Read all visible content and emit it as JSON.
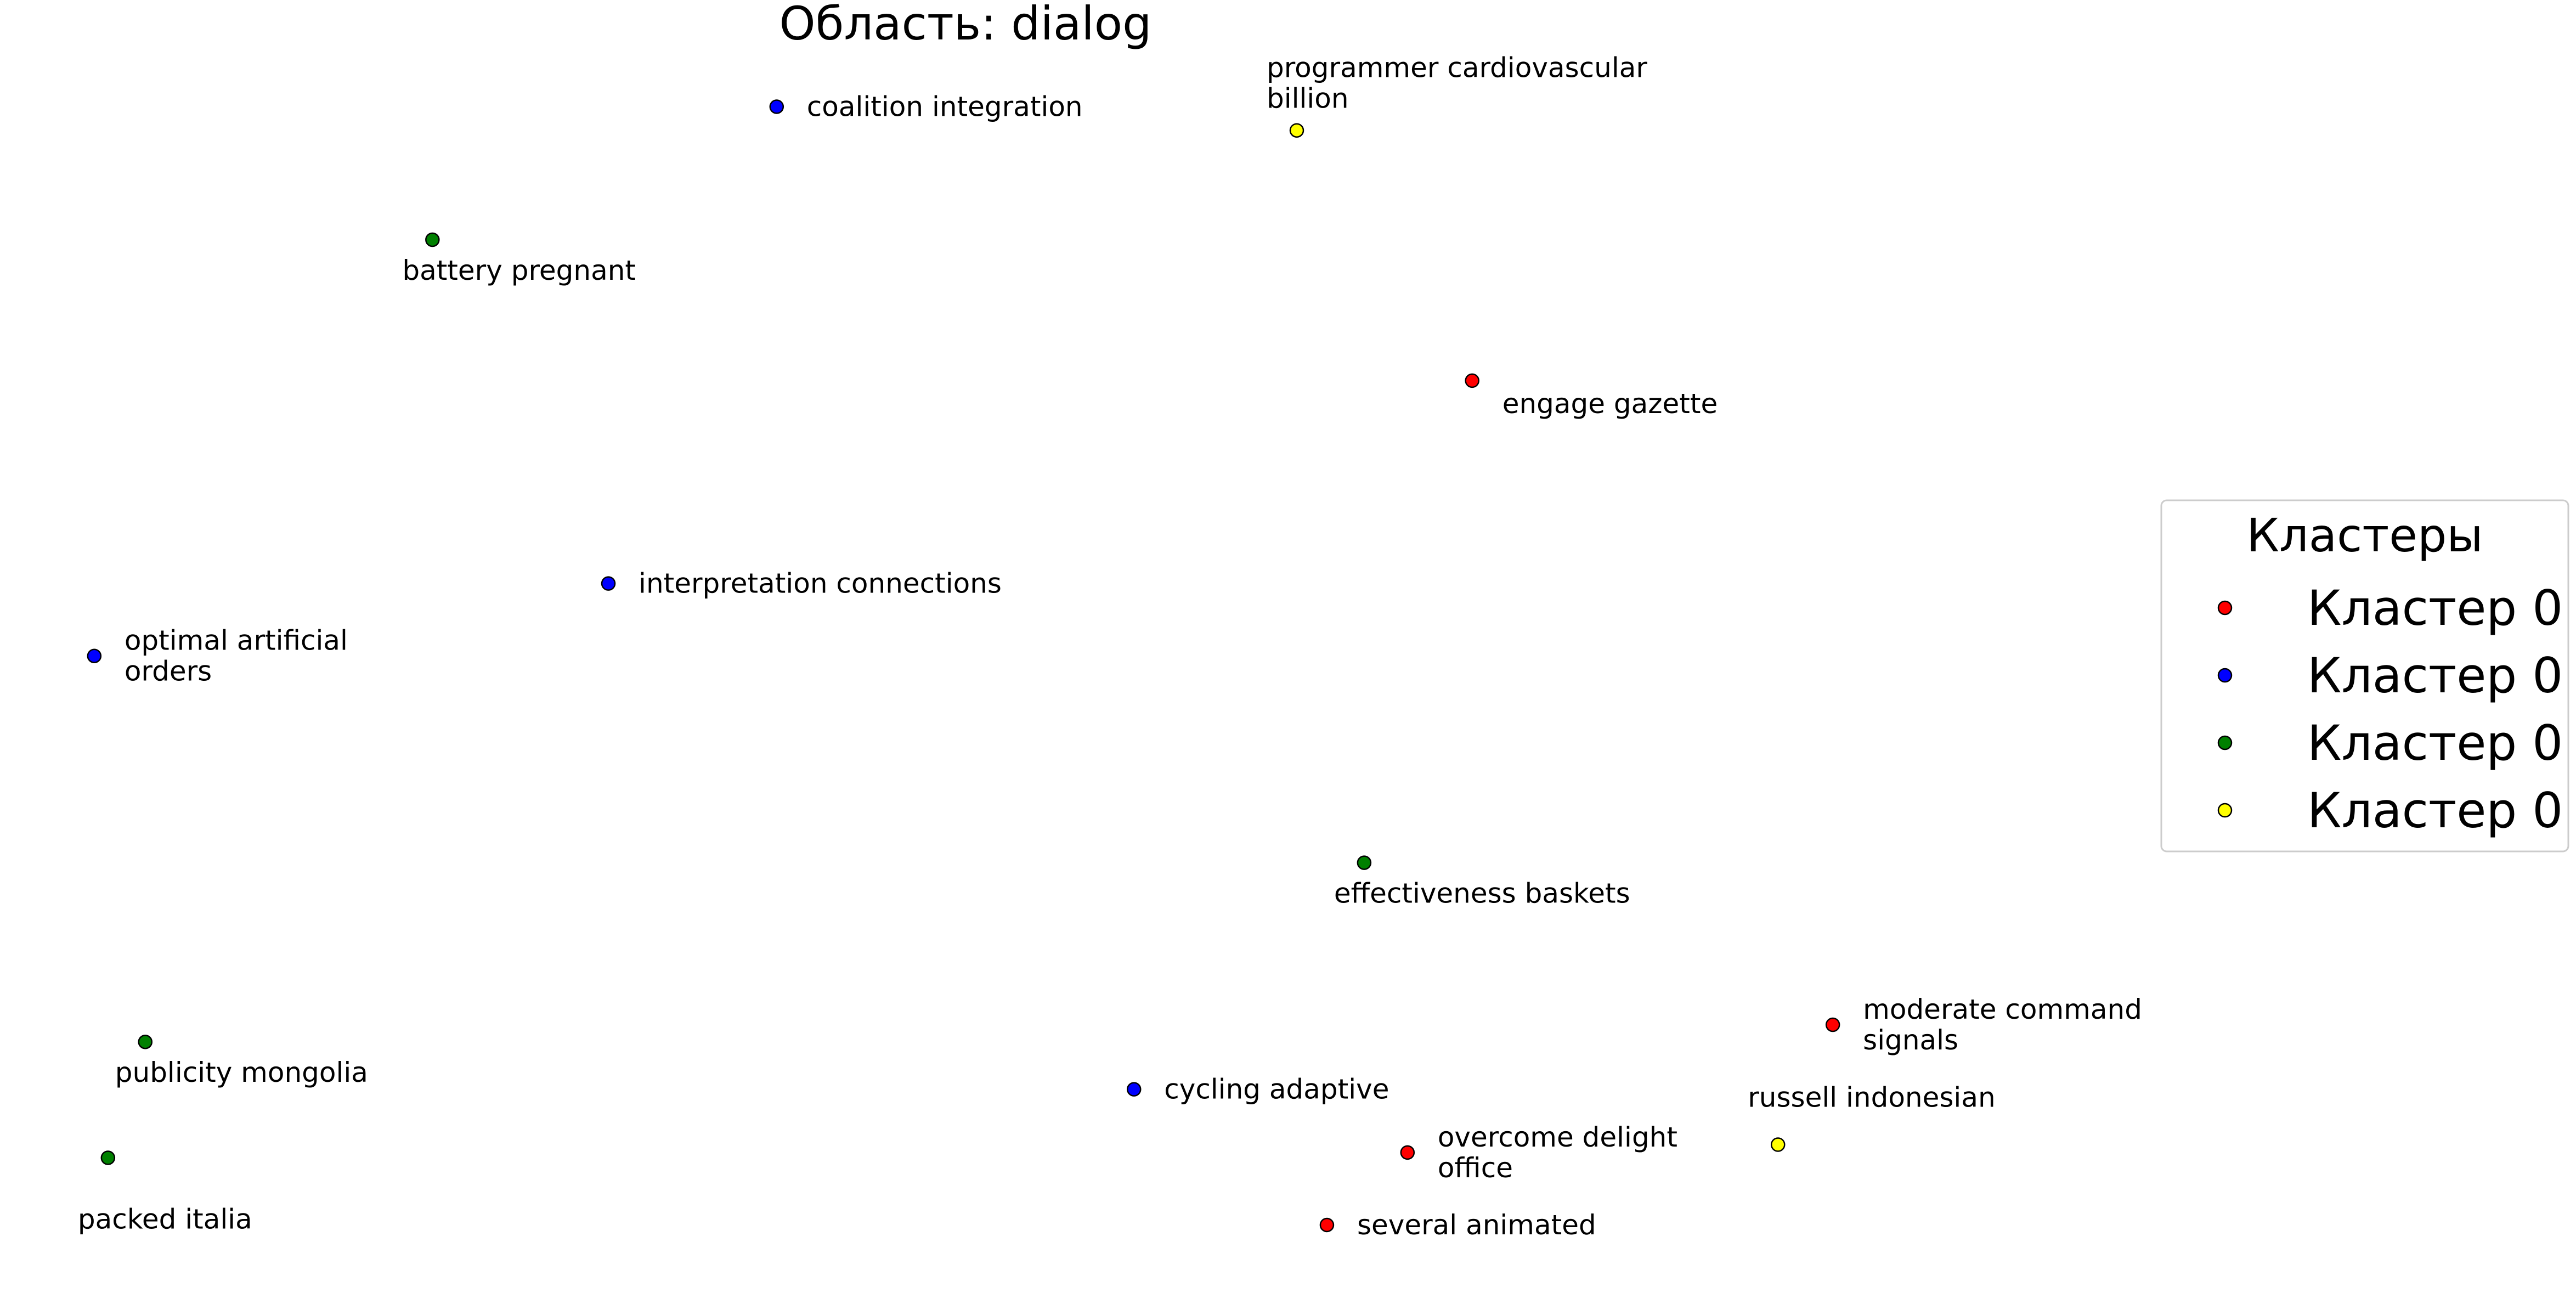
{
  "chart_data": {
    "type": "scatter",
    "title": "Область: dialog",
    "xlabel": "",
    "ylabel": "",
    "axes_visible": false,
    "grid": false,
    "legend": {
      "title": "Кластеры",
      "placement": "right",
      "entries": [
        {
          "label": "Кластер 0",
          "color": "#ff0000"
        },
        {
          "label": "Кластер 0",
          "color": "#0000ff"
        },
        {
          "label": "Кластер 0",
          "color": "#008000"
        },
        {
          "label": "Кластер 0",
          "color": "#ffff00"
        }
      ]
    },
    "series": [
      {
        "color": "#ff0000",
        "points": [
          {
            "x": 2.686,
            "y": 7.01,
            "label": [
              "engage gazette"
            ],
            "anchor": "br"
          },
          {
            "x": 3.344,
            "y": 2.12,
            "label": [
              "moderate command",
              "signals"
            ],
            "anchor": "r"
          },
          {
            "x": 2.568,
            "y": 1.15,
            "label": [
              "overcome delight",
              "office"
            ],
            "anchor": "r"
          },
          {
            "x": 2.421,
            "y": 0.6,
            "label": [
              "several animated"
            ],
            "anchor": "r"
          }
        ]
      },
      {
        "color": "#0000ff",
        "points": [
          {
            "x": 1.417,
            "y": 9.09,
            "label": [
              "coalition integration"
            ],
            "anchor": "r"
          },
          {
            "x": 1.11,
            "y": 5.47,
            "label": [
              "interpretation connections"
            ],
            "anchor": "r"
          },
          {
            "x": 0.172,
            "y": 4.92,
            "label": [
              "optimal artificial",
              "orders"
            ],
            "anchor": "r"
          },
          {
            "x": 2.069,
            "y": 1.63,
            "label": [
              "cycling adaptive"
            ],
            "anchor": "r"
          }
        ]
      },
      {
        "color": "#008000",
        "points": [
          {
            "x": 0.789,
            "y": 8.08,
            "label": [
              "battery pregnant"
            ],
            "anchor": "bl"
          },
          {
            "x": 2.489,
            "y": 3.35,
            "label": [
              "effectiveness baskets"
            ],
            "anchor": "bl"
          },
          {
            "x": 0.265,
            "y": 1.99,
            "label": [
              "publicity mongolia"
            ],
            "anchor": "bl"
          },
          {
            "x": 0.197,
            "y": 1.11,
            "label": [
              "packed italia"
            ],
            "anchor": "bbl"
          }
        ]
      },
      {
        "color": "#ffff00",
        "points": [
          {
            "x": 2.366,
            "y": 8.91,
            "label": [
              "programmer cardiovascular",
              "billion"
            ],
            "anchor": "t"
          },
          {
            "x": 3.244,
            "y": 1.21,
            "label": [
              "russell indonesian"
            ],
            "anchor": "tl"
          }
        ]
      }
    ],
    "xlim": [
      0,
      4.7
    ],
    "ylim": [
      0,
      9.9
    ]
  }
}
